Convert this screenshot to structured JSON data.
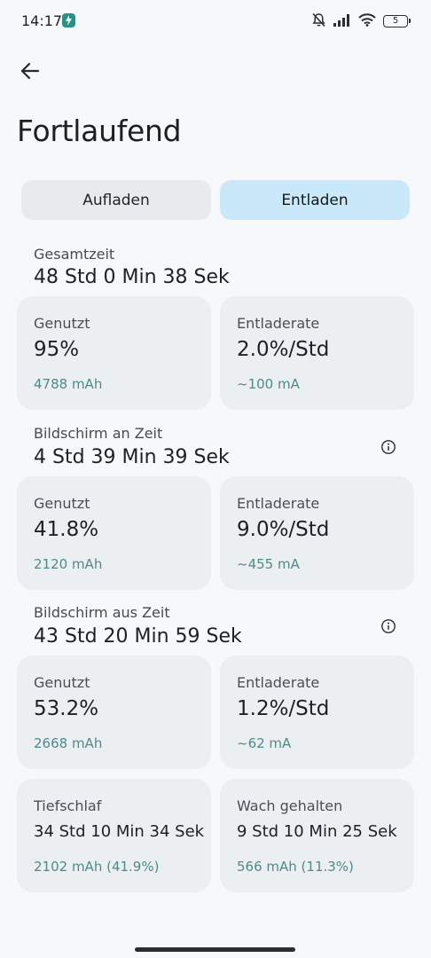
{
  "status_bar": {
    "time": "14:17",
    "battery": "5",
    "icons": [
      "app-notification-icon",
      "bell-off-icon",
      "signal-icon",
      "wifi-icon",
      "battery-icon"
    ]
  },
  "header": {
    "title": "Fortlaufend"
  },
  "tabs": {
    "charge_label": "Aufladen",
    "discharge_label": "Entladen",
    "active": "Entladen"
  },
  "total": {
    "label": "Gesamtzeit",
    "value": "48 Std 0 Min 38 Sek",
    "used": {
      "label": "Genutzt",
      "value": "95%",
      "sub": "4788 mAh"
    },
    "rate": {
      "label": "Entladerate",
      "value": "2.0%/Std",
      "sub": "~100 mA"
    }
  },
  "screen_on": {
    "label": "Bildschirm an Zeit",
    "value": "4 Std 39 Min 39 Sek",
    "used": {
      "label": "Genutzt",
      "value": "41.8%",
      "sub": "2120 mAh"
    },
    "rate": {
      "label": "Entladerate",
      "value": "9.0%/Std",
      "sub": "~455 mA"
    }
  },
  "screen_off": {
    "label": "Bildschirm aus Zeit",
    "value": "43 Std 20 Min 59 Sek",
    "used": {
      "label": "Genutzt",
      "value": "53.2%",
      "sub": "2668 mAh"
    },
    "rate": {
      "label": "Entladerate",
      "value": "1.2%/Std",
      "sub": "~62 mA"
    }
  },
  "sleep": {
    "deep": {
      "label": "Tiefschlaf",
      "value": "34 Std 10 Min 34 Sek",
      "sub": "2102 mAh (41.9%)"
    },
    "awake": {
      "label": "Wach gehalten",
      "value": "9 Std 10 Min 25 Sek",
      "sub": "566 mAh (11.3%)"
    }
  },
  "colors": {
    "accent_tab": "#c9e9fb",
    "sub_text": "#4f8a8b",
    "card_bg": "#eceff2"
  }
}
